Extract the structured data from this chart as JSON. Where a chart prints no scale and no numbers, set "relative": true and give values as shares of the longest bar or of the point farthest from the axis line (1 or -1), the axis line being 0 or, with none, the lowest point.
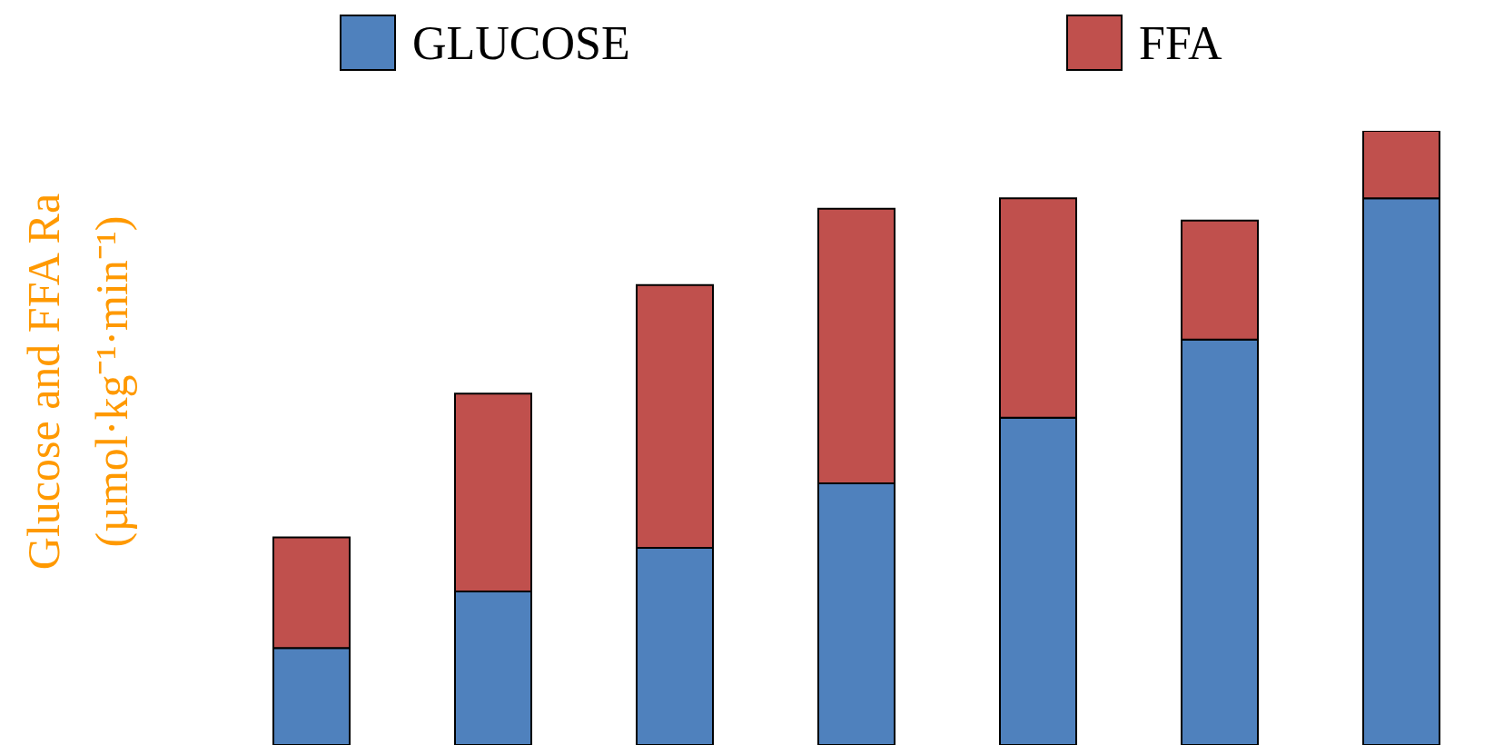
{
  "chart_data": {
    "type": "bar",
    "stacked": true,
    "relative": true,
    "ylabel": "Glucose and FFA Ra\n(µmol·kg⁻¹·min⁻¹)",
    "categories": [
      null,
      null,
      null,
      null,
      null,
      null,
      null
    ],
    "series": [
      {
        "name": "GLUCOSE",
        "color": "#4f81bd",
        "values": [
          0.158,
          0.25,
          0.321,
          0.426,
          0.533,
          0.66,
          0.89
        ]
      },
      {
        "name": "FFA",
        "color": "#c0504d",
        "values": [
          0.18,
          0.322,
          0.428,
          0.447,
          0.357,
          0.194,
          0.11
        ]
      }
    ],
    "legend": "top",
    "grid": false
  }
}
